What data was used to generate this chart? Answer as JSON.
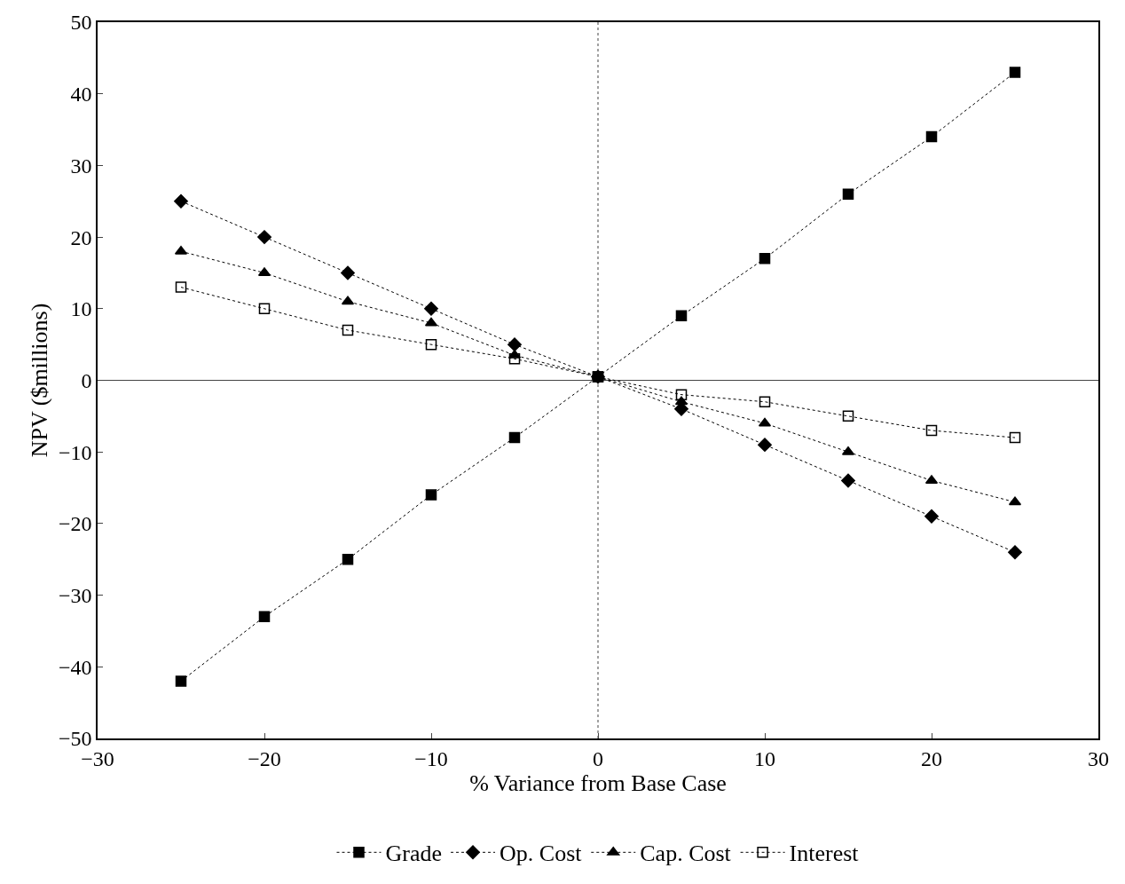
{
  "chart_data": {
    "type": "line",
    "xlabel": "% Variance from Base Case",
    "ylabel": "NPV ($millions)",
    "x": [
      -25,
      -20,
      -15,
      -10,
      -5,
      0,
      5,
      10,
      15,
      20,
      25
    ],
    "series": [
      {
        "name": "Grade",
        "color": "#000000",
        "marker": "square",
        "values": [
          -42,
          -33,
          -25,
          -16,
          -8,
          0.5,
          9,
          17,
          26,
          34,
          43
        ]
      },
      {
        "name": "Op. Cost",
        "color": "#000000",
        "marker": "diamond",
        "values": [
          25,
          20,
          15,
          10,
          5,
          0.5,
          -4,
          -9,
          -14,
          -19,
          -24
        ]
      },
      {
        "name": "Cap. Cost",
        "color": "#000000",
        "marker": "triangle",
        "values": [
          18,
          15,
          11,
          8,
          3.5,
          0.5,
          -3,
          -6,
          -10,
          -14,
          -17
        ]
      },
      {
        "name": "Interest",
        "color": "#000000",
        "marker": "square-open",
        "values": [
          13,
          10,
          7,
          5,
          3,
          0.5,
          -2,
          -3,
          -5,
          -7,
          -8
        ]
      }
    ],
    "xlim": [
      -30,
      30
    ],
    "xticks": [
      {
        "value": -30,
        "label": "−30"
      },
      {
        "value": -20,
        "label": "−20"
      },
      {
        "value": -10,
        "label": "−10"
      },
      0,
      10,
      20,
      30
    ],
    "ylim": [
      -50,
      50
    ],
    "yticks": [
      {
        "value": -50,
        "label": "−50"
      },
      {
        "value": -40,
        "label": "−40"
      },
      {
        "value": -30,
        "label": "−30"
      },
      {
        "value": -20,
        "label": "−20"
      },
      {
        "value": -10,
        "label": "−10"
      },
      0,
      10,
      20,
      30,
      40,
      50
    ],
    "ref_lines": [
      {
        "axis": "x",
        "value": 0,
        "color": "#444444",
        "line_style": "dotted"
      },
      {
        "axis": "y",
        "value": 0,
        "color": "#444444",
        "line_style": "solid"
      }
    ],
    "line_style": "dotted",
    "grid": false,
    "legend": "bottom"
  }
}
